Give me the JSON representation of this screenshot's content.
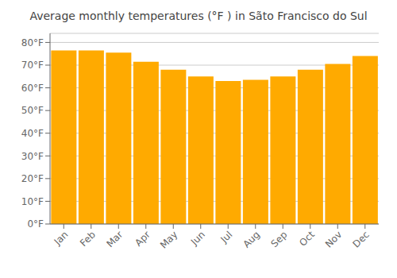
{
  "chart_data": {
    "type": "bar",
    "title": "Average monthly temperatures (°F ) in Sãto Francisco do Sul",
    "categories": [
      "Jan",
      "Feb",
      "Mar",
      "Apr",
      "May",
      "Jun",
      "Jul",
      "Aug",
      "Sep",
      "Oct",
      "Nov",
      "Dec"
    ],
    "values": [
      76.5,
      76.5,
      75.5,
      71.5,
      68.0,
      65.0,
      63.0,
      63.5,
      65.0,
      68.0,
      70.5,
      74.0
    ],
    "color": "#FFAA00",
    "ylim": [
      0,
      84
    ],
    "yticks": [
      {
        "value": 0,
        "label": "0°F"
      },
      {
        "value": 10,
        "label": "10°F"
      },
      {
        "value": 20,
        "label": "20°F"
      },
      {
        "value": 30,
        "label": "30°F"
      },
      {
        "value": 40,
        "label": "40°F"
      },
      {
        "value": 50,
        "label": "50°F"
      },
      {
        "value": 60,
        "label": "60°F"
      },
      {
        "value": 70,
        "label": "70°F"
      },
      {
        "value": 80,
        "label": "80°F"
      }
    ],
    "grid": true
  }
}
